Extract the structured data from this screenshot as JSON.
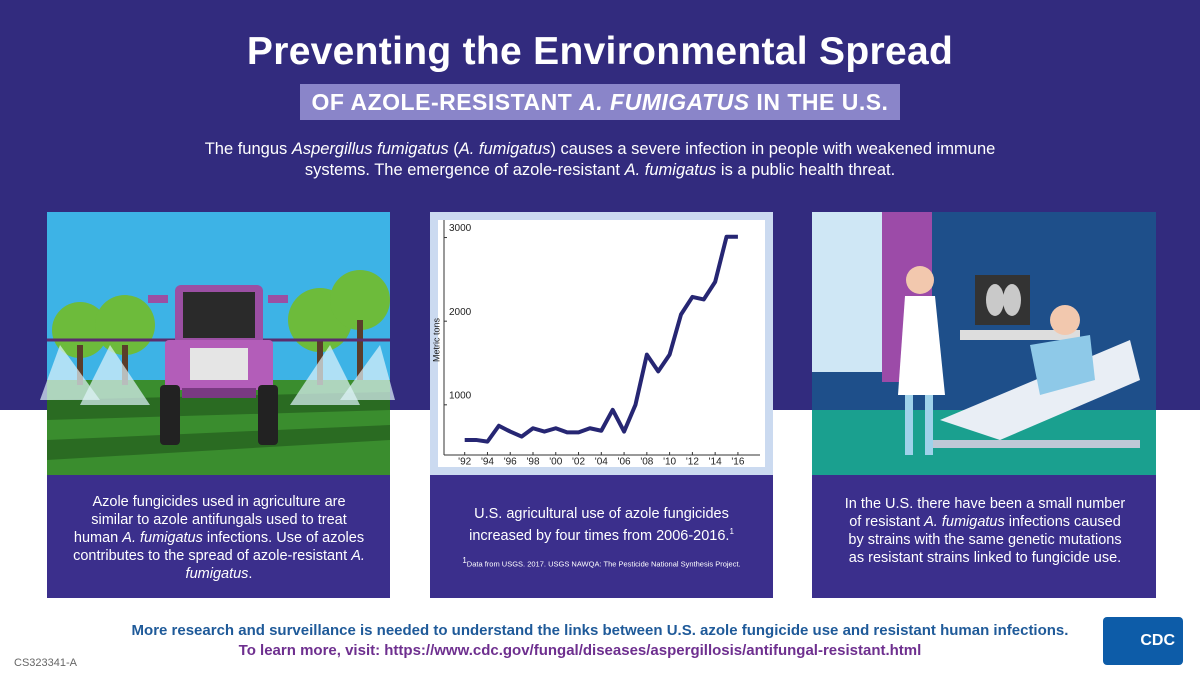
{
  "header": {
    "title": "Preventing the Environmental Spread",
    "subtitle": [
      "OF AZOLE-RESISTANT ",
      "A. FUMIGATUS",
      " IN THE U.S."
    ],
    "intro": [
      "The fungus ",
      "Aspergillus fumigatus",
      " (",
      "A. fumigatus",
      ") causes a severe infection in people with weakened immune systems. The emergence of azole-resistant ",
      "A. fumigatus",
      " is a public health threat."
    ]
  },
  "panels": [
    {
      "text": [
        "Azole fungicides used in agriculture are similar to azole antifungals used to treat human ",
        "A. fumigatus",
        " infections. Use of azoles contributes to the spread of azole-resistant ",
        "A. fumigatus",
        "."
      ]
    },
    {
      "text": [
        "U.S. agricultural use of azole fungicides increased by four times from 2006-2016.",
        "1"
      ],
      "footnote": [
        "1",
        "Data from USGS. 2017. USGS NAWQA: The Pesticide National Synthesis Project."
      ]
    },
    {
      "text": [
        "In the U.S. there have been a small number of resistant ",
        "A. fumigatus",
        " infections caused by strains with the same genetic mutations as resistant strains linked to fungicide use."
      ]
    }
  ],
  "chart_data": {
    "type": "line",
    "ylabel": "Metric tons",
    "x": [
      1992,
      1993,
      1994,
      1995,
      1996,
      1997,
      1998,
      1999,
      2000,
      2001,
      2002,
      2003,
      2004,
      2005,
      2006,
      2007,
      2008,
      2009,
      2010,
      2011,
      2012,
      2013,
      2014,
      2015,
      2016
    ],
    "series": [
      {
        "color": "#262673",
        "values": [
          580,
          580,
          560,
          750,
          680,
          620,
          720,
          680,
          720,
          670,
          670,
          720,
          690,
          940,
          680,
          1000,
          1600,
          1400,
          1600,
          2080,
          2290,
          2260,
          2470,
          3010,
          3010
        ]
      }
    ],
    "xlim": [
      1991.5,
      2017.5
    ],
    "xticks": [
      {
        "value": 1992,
        "label": "'92"
      },
      {
        "value": 1994,
        "label": "'94"
      },
      {
        "value": 1996,
        "label": "'96"
      },
      {
        "value": 1998,
        "label": "'98"
      },
      {
        "value": 2000,
        "label": "'00"
      },
      {
        "value": 2002,
        "label": "'02"
      },
      {
        "value": 2004,
        "label": "'04"
      },
      {
        "value": 2006,
        "label": "'06"
      },
      {
        "value": 2008,
        "label": "'08"
      },
      {
        "value": 2010,
        "label": "'10"
      },
      {
        "value": 2012,
        "label": "'12"
      },
      {
        "value": 2014,
        "label": "'14"
      },
      {
        "value": 2016,
        "label": "'16"
      }
    ],
    "ylim": [
      400,
      3150
    ],
    "yticks": [
      1000,
      2000,
      3000
    ]
  },
  "footer": {
    "research": "More research and surveillance is needed to understand the links between U.S. azole fungicide use and resistant human infections.",
    "learn_more": "To learn more, visit: https://www.cdc.gov/fungal/diseases/aspergillosis/antifungal-resistant.html",
    "code": "CS323341-A",
    "logo": "CDC"
  }
}
